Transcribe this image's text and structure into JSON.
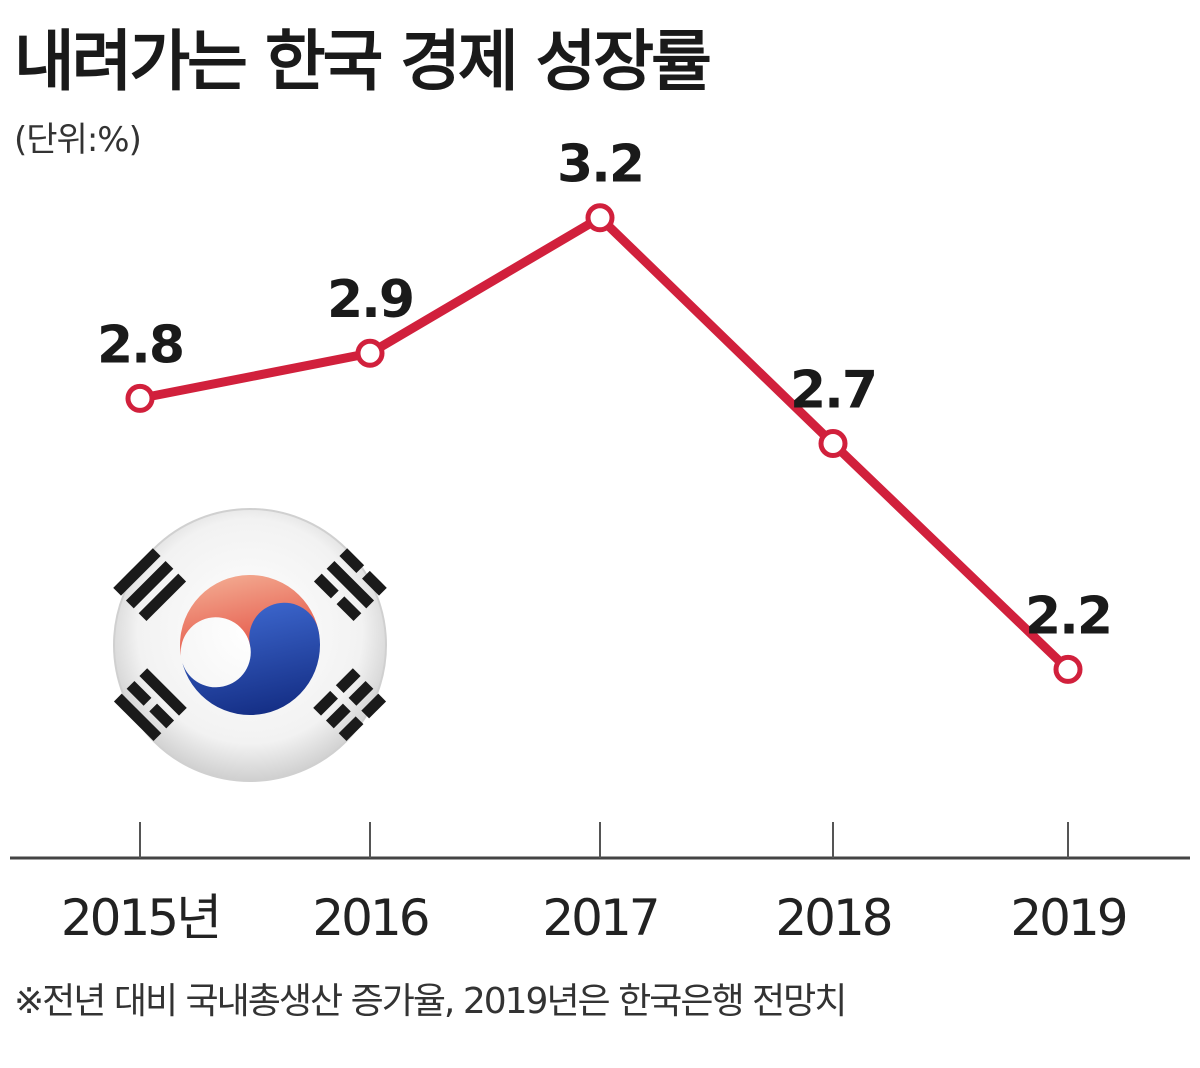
{
  "chart_data": {
    "type": "line",
    "title": "내려가는 한국 경제 성장률",
    "unit_note": "(단위:%)",
    "categories": [
      "2015년",
      "2016",
      "2017",
      "2018",
      "2019"
    ],
    "values": [
      2.8,
      2.9,
      3.2,
      2.7,
      2.2
    ],
    "value_labels": [
      "2.8",
      "2.9",
      "3.2",
      "2.7",
      "2.2"
    ],
    "footnote": "※전년 대비 국내총생산 증가율, 2019년은 한국은행 전망치",
    "ylim": [
      1.8,
      3.35
    ],
    "grid": false,
    "legend": "none",
    "colors": {
      "line": "#d1203c",
      "axis": "#444444",
      "flag_red": "#e23b3b",
      "flag_blue": "#1f3f9a"
    }
  },
  "decoration": {
    "icon": "korean-flag-icon"
  }
}
